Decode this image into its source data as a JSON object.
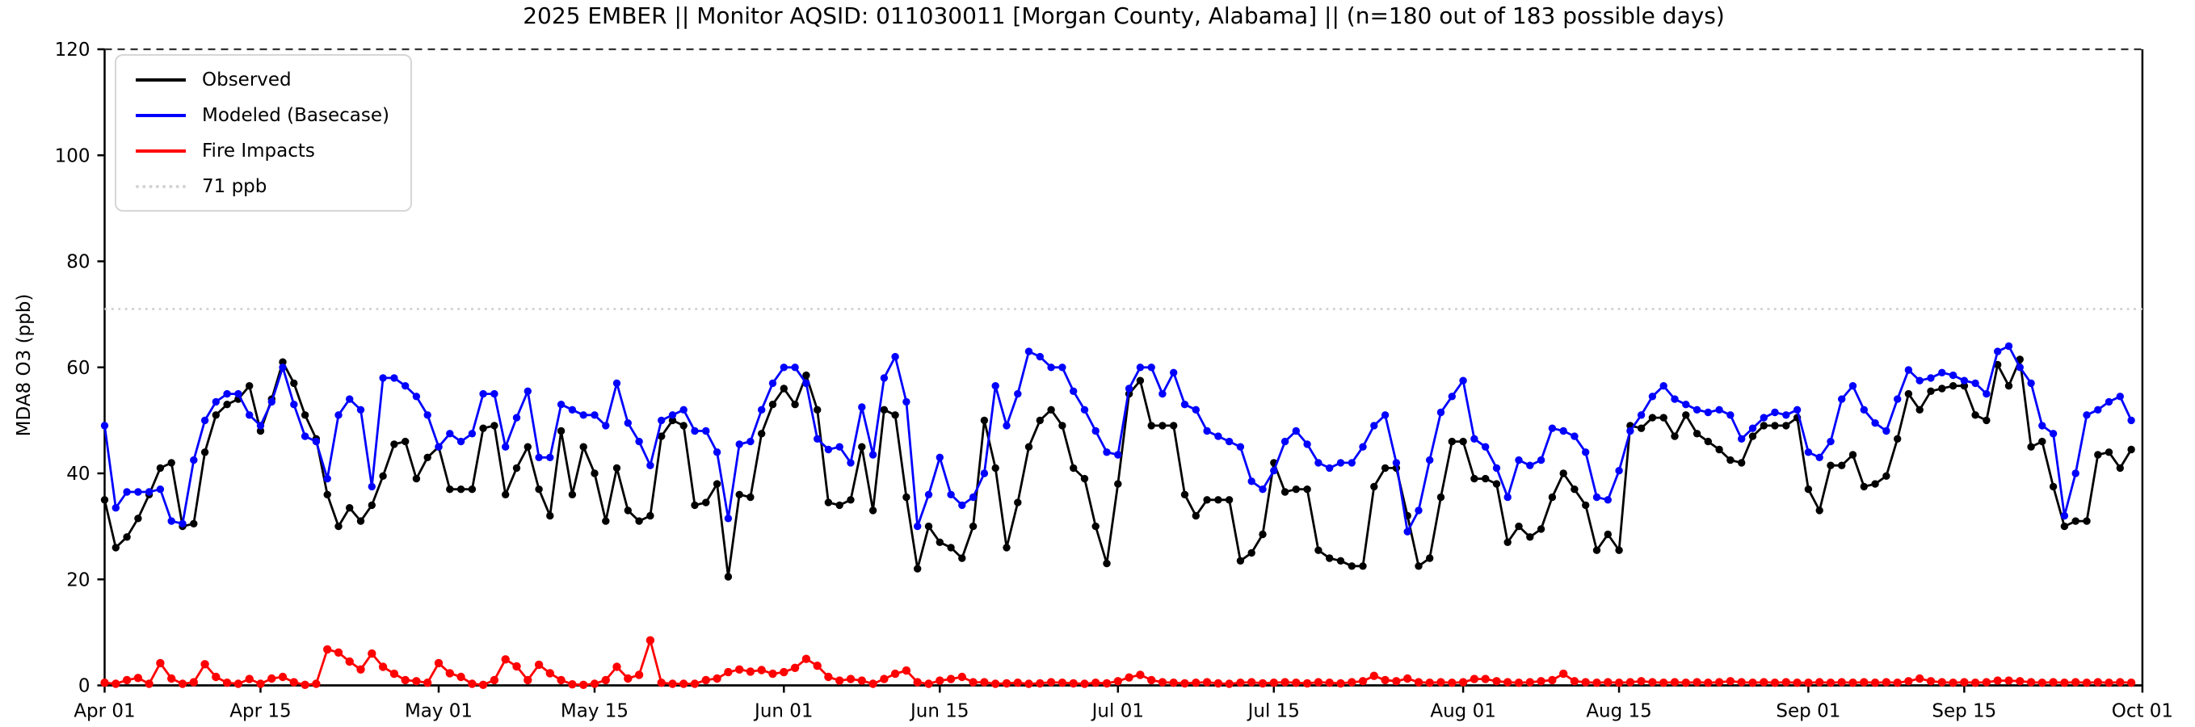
{
  "figure": {
    "background": "#ffffff"
  },
  "chart_data": {
    "type": "line",
    "title": "2025 EMBER || Monitor AQSID: 011030011 [Morgan County, Alabama] || (n=180 out of 183 possible days)",
    "xlabel": "",
    "ylabel": "MDA8 O3 (ppb)",
    "ylim": [
      0,
      120
    ],
    "yticks": [
      0,
      20,
      40,
      60,
      80,
      100,
      120
    ],
    "n_days": 183,
    "x_ticklabels": [
      "Apr 01",
      "Apr 15",
      "May 01",
      "May 15",
      "Jun 01",
      "Jun 15",
      "Jul 01",
      "Jul 15",
      "Aug 01",
      "Aug 15",
      "Sep 01",
      "Sep 15",
      "Oct 01"
    ],
    "x_tick_positions_days": [
      0,
      14,
      30,
      44,
      61,
      75,
      91,
      105,
      122,
      136,
      153,
      167,
      183
    ],
    "grid": false,
    "legend_position": "upper left",
    "threshold": {
      "value": 71,
      "label": "71 ppb",
      "color": "#d3d3d3",
      "style": "dotted"
    },
    "legend": {
      "entries": [
        {
          "label": "Observed",
          "color": "#000000",
          "style": "solid"
        },
        {
          "label": "Modeled (Basecase)",
          "color": "#0000ff",
          "style": "solid"
        },
        {
          "label": "Fire Impacts",
          "color": "#ff0000",
          "style": "solid"
        },
        {
          "label": "71 ppb",
          "color": "#d3d3d3",
          "style": "dotted"
        }
      ]
    },
    "series": [
      {
        "name": "Observed",
        "color": "#000000",
        "values": [
          35,
          26,
          28,
          31.5,
          36,
          41,
          42,
          30,
          30.5,
          44,
          51,
          53,
          54,
          56.5,
          48,
          54,
          61,
          57,
          51,
          46.5,
          36,
          30,
          33.5,
          31,
          34,
          39.5,
          45.5,
          46,
          39,
          43,
          45,
          37,
          37,
          37,
          48.5,
          49,
          36,
          41,
          45,
          37,
          32,
          48,
          36,
          45,
          40,
          31,
          41,
          33,
          31,
          32,
          47,
          50,
          49,
          34,
          34.5,
          38,
          20.5,
          36,
          35.5,
          47.5,
          53,
          56,
          53,
          58.5,
          52,
          34.5,
          34,
          35,
          45,
          33,
          52,
          51,
          35.5,
          22,
          30,
          27,
          26,
          24,
          30,
          50,
          41,
          26,
          34.5,
          45,
          50,
          52,
          49,
          41,
          39,
          30,
          23,
          38,
          55,
          57.5,
          49,
          49,
          49,
          36,
          32,
          35,
          35,
          35,
          23.5,
          25,
          28.5,
          42,
          36.5,
          37,
          37,
          25.5,
          24,
          23.5,
          22.5,
          22.5,
          37.5,
          41,
          41,
          32,
          22.5,
          24,
          35.5,
          46,
          46,
          39,
          39,
          38,
          27,
          30,
          28,
          29.5,
          35.5,
          40,
          37,
          34,
          25.5,
          28.5,
          25.5,
          49,
          48.5,
          50.5,
          50.5,
          47,
          51,
          47.5,
          46,
          44.5,
          42.5,
          42,
          47,
          49,
          49,
          49,
          50.5,
          37,
          33,
          41.5,
          41.5,
          43.5,
          37.5,
          38,
          39.5,
          46.5,
          55,
          52,
          55.5,
          56,
          56.5,
          56.5,
          51,
          50,
          60.5,
          56.5,
          61.5,
          45,
          46,
          37.5,
          30,
          31,
          31,
          43.5,
          44,
          41,
          44.5
        ]
      },
      {
        "name": "Modeled (Basecase)",
        "color": "#0000ff",
        "values": [
          49,
          33.5,
          36.5,
          36.5,
          36.5,
          37,
          31,
          30.5,
          42.5,
          50,
          53.5,
          55,
          55,
          51,
          49,
          53.5,
          60,
          53,
          47,
          46,
          39,
          51,
          54,
          52,
          37.5,
          58,
          58,
          56.5,
          54.5,
          51,
          45,
          47.5,
          46,
          47.5,
          55,
          55,
          45,
          50.5,
          55.5,
          43,
          43,
          53,
          52,
          51,
          51,
          49,
          57,
          49.5,
          46,
          41.5,
          50,
          51,
          52,
          48,
          48,
          44,
          31.5,
          45.5,
          46,
          52,
          57,
          60,
          60,
          57,
          46.5,
          44.5,
          45,
          42,
          52.5,
          43.5,
          58,
          62,
          53.5,
          30,
          36,
          43,
          36,
          34,
          35.5,
          40,
          56.5,
          49,
          55,
          63,
          62,
          60,
          60,
          55.5,
          52,
          48,
          44,
          43.5,
          56,
          60,
          60,
          55,
          59,
          53,
          52,
          48,
          47,
          46,
          45,
          38.5,
          37,
          40.5,
          46,
          48,
          45.5,
          42,
          41,
          42,
          42,
          45,
          49,
          51,
          42,
          29,
          33,
          42.5,
          51.5,
          54.5,
          57.5,
          46.5,
          45,
          41,
          35.5,
          42.5,
          41.5,
          42.5,
          48.5,
          48,
          47,
          44,
          35.5,
          35,
          40.5,
          48,
          51,
          54.5,
          56.5,
          54,
          53,
          52,
          51.5,
          52,
          51,
          46.5,
          48.5,
          50.5,
          51.5,
          51,
          52,
          44,
          43,
          46,
          54,
          56.5,
          52,
          49.5,
          48,
          54,
          59.5,
          57.5,
          58,
          59,
          58.5,
          57.5,
          57,
          55,
          63,
          64,
          60,
          57,
          49,
          47.5,
          32,
          40,
          51,
          52,
          53.5,
          54.5,
          50
        ]
      },
      {
        "name": "Fire Impacts",
        "color": "#ff0000",
        "values": [
          0.5,
          0.3,
          1,
          1.4,
          0.3,
          4.2,
          1.3,
          0.3,
          0.6,
          4,
          1.6,
          0.5,
          0.3,
          1.2,
          0.3,
          1.3,
          1.6,
          0.6,
          0.1,
          0.3,
          6.8,
          6.2,
          4.5,
          3,
          6,
          3.5,
          2.2,
          1,
          0.8,
          0.5,
          4.2,
          2.3,
          1.6,
          0.3,
          0.1,
          1,
          4.9,
          3.6,
          1,
          3.9,
          2.3,
          1,
          0.2,
          0.1,
          0.3,
          1,
          3.5,
          1.3,
          2,
          8.5,
          0.5,
          0.3,
          0.3,
          0.3,
          1,
          1.3,
          2.5,
          3,
          2.6,
          2.9,
          2.2,
          2.5,
          3.3,
          5,
          3.7,
          1.6,
          0.9,
          1.2,
          0.9,
          0.3,
          1.2,
          2.2,
          2.8,
          0.6,
          0.3,
          0.9,
          1.2,
          1.6,
          0.6,
          0.6,
          0.3,
          0.4,
          0.5,
          0.3,
          0.4,
          0.6,
          0.5,
          0.4,
          0.3,
          0.5,
          0.4,
          0.8,
          1.5,
          2,
          1,
          0.6,
          0.5,
          0.4,
          0.5,
          0.6,
          0.4,
          0.3,
          0.5,
          0.6,
          0.4,
          0.5,
          0.6,
          0.5,
          0.4,
          0.6,
          0.5,
          0.4,
          0.6,
          0.8,
          1.8,
          1,
          0.8,
          1.3,
          0.6,
          0.5,
          0.6,
          0.5,
          0.6,
          1.2,
          1.2,
          0.8,
          0.6,
          0.5,
          0.6,
          0.8,
          1,
          2.2,
          0.8,
          0.6,
          0.5,
          0.6,
          0.5,
          0.6,
          0.8,
          0.6,
          0.5,
          0.6,
          0.5,
          0.6,
          0.5,
          0.6,
          0.8,
          0.6,
          0.5,
          0.6,
          0.5,
          0.6,
          0.5,
          0.5,
          0.6,
          0.5,
          0.6,
          0.5,
          0.6,
          0.5,
          0.6,
          0.5,
          0.8,
          1.3,
          0.8,
          0.6,
          0.5,
          0.6,
          0.5,
          0.6,
          0.9,
          0.9,
          0.8,
          0.6,
          0.5,
          0.6,
          0.5,
          0.6,
          0.5,
          0.6,
          0.5,
          0.6,
          0.5
        ]
      }
    ]
  }
}
